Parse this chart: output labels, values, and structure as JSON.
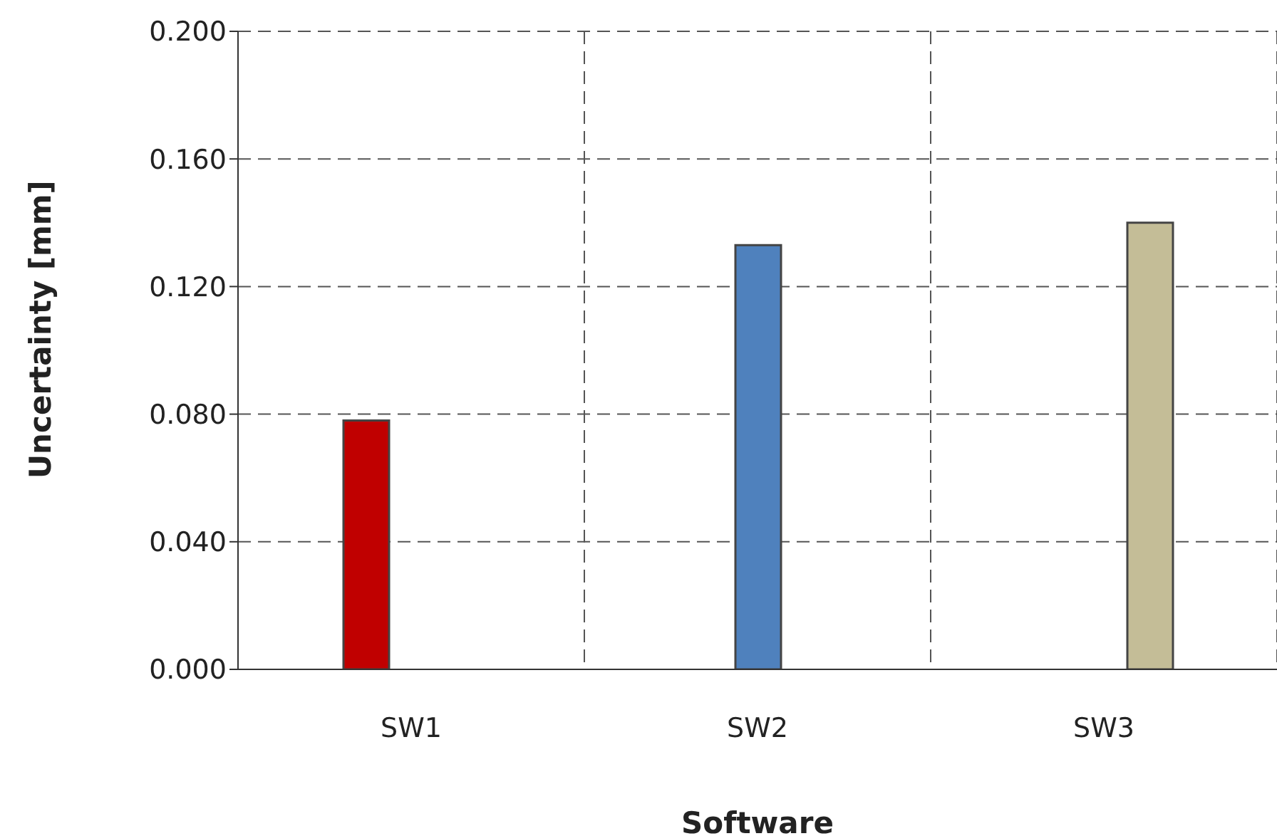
{
  "chart_data": {
    "type": "bar",
    "xlabel": "Software",
    "ylabel": "Uncertainty [mm]",
    "categories": [
      "SW1",
      "SW2",
      "SW3"
    ],
    "series": [
      {
        "color": "#c00000",
        "values": [
          0.078,
          null,
          null
        ]
      },
      {
        "color": "#4f81bd",
        "values": [
          null,
          0.133,
          null
        ]
      },
      {
        "color": "#c4bd97",
        "values": [
          null,
          null,
          0.14
        ]
      }
    ],
    "ylim": [
      0,
      0.2
    ],
    "yticks": [
      {
        "value": 0,
        "label": "0.000"
      },
      {
        "value": 0.04,
        "label": "0.040"
      },
      {
        "value": 0.08,
        "label": "0.080"
      },
      {
        "value": 0.12,
        "label": "0.120"
      },
      {
        "value": 0.16,
        "label": "0.160"
      },
      {
        "value": 0.2,
        "label": "0.200"
      }
    ],
    "grid": true,
    "legend": false
  }
}
